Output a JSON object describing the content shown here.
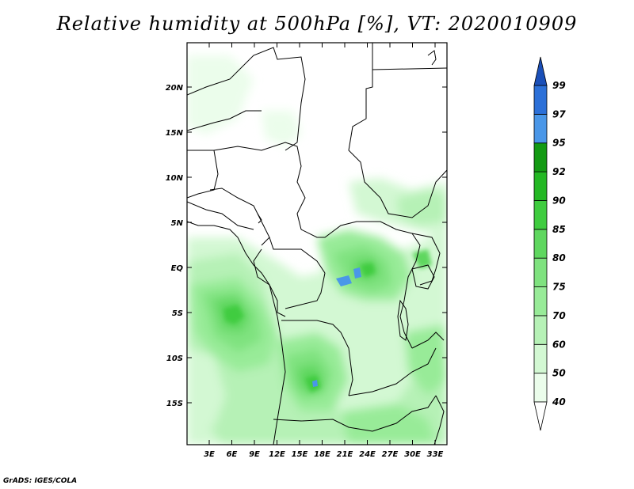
{
  "title": "Relative humidity at 500hPa [%], VT: 2020010909",
  "credit": "GrADS: IGES/COLA",
  "map": {
    "lat_labels": [
      "20N",
      "15N",
      "10N",
      "5N",
      "EQ",
      "5S",
      "10S",
      "15S"
    ],
    "lon_labels": [
      "3E",
      "6E",
      "9E",
      "12E",
      "15E",
      "18E",
      "21E",
      "24E",
      "27E",
      "30E",
      "33E"
    ],
    "lat_values": [
      20,
      15,
      10,
      5,
      0,
      -5,
      -10,
      -15
    ],
    "lon_values": [
      3,
      6,
      9,
      12,
      15,
      18,
      21,
      24,
      27,
      30,
      33
    ]
  },
  "colorbar": {
    "levels": [
      "40",
      "50",
      "60",
      "70",
      "75",
      "80",
      "85",
      "90",
      "92",
      "95",
      "97",
      "99"
    ],
    "colors": [
      "#ebfdeb",
      "#d3f8d3",
      "#b6f1b6",
      "#98eb98",
      "#7fe27f",
      "#5fd75f",
      "#3fcc3f",
      "#24b824",
      "#139a13",
      "#4a97e8",
      "#2c70d8",
      "#1a4fb8"
    ],
    "below_color": "#ffffff",
    "above_color": "#1a4fb8"
  },
  "colors": {
    "land": "#ffffff",
    "border": "#000000",
    "lake": "#4a97e8"
  }
}
